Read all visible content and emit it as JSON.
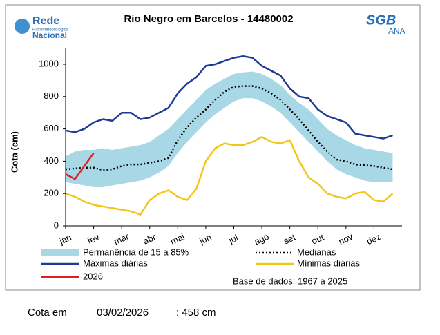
{
  "logo": {
    "line1": "Rede",
    "line2": "Hidrometeorológica",
    "line3": "Nacional",
    "right1": "SGB",
    "right2": "ANA"
  },
  "chart_data": {
    "type": "line",
    "title": "Rio Negro em Barcelos - 14480002",
    "y_label": "Cota (cm)",
    "note": "Base de dados: 1967 a 2025",
    "categories": [
      "jan",
      null,
      null,
      "fev",
      null,
      null,
      "mar",
      null,
      null,
      "abr",
      null,
      null,
      "mai",
      null,
      null,
      "jun",
      null,
      null,
      "jul",
      null,
      null,
      "ago",
      null,
      null,
      "set",
      null,
      null,
      "out",
      null,
      null,
      "nov",
      null,
      null,
      "dez",
      null,
      null
    ],
    "ylim": [
      0,
      1100
    ],
    "yticks": [
      0,
      200,
      400,
      600,
      800,
      1000
    ],
    "series": [
      {
        "name": "Permanência de 15 a 85%",
        "color": "#a8d8e6",
        "style": "band",
        "upper": [
          430,
          460,
          470,
          470,
          480,
          470,
          480,
          490,
          500,
          520,
          560,
          600,
          660,
          720,
          780,
          840,
          880,
          910,
          940,
          950,
          955,
          940,
          910,
          870,
          810,
          760,
          720,
          660,
          600,
          560,
          530,
          500,
          480,
          470,
          460,
          450
        ],
        "lower": [
          270,
          260,
          250,
          240,
          240,
          250,
          260,
          270,
          280,
          300,
          330,
          370,
          450,
          520,
          580,
          640,
          690,
          730,
          770,
          790,
          790,
          770,
          740,
          700,
          640,
          580,
          520,
          460,
          400,
          350,
          320,
          300,
          280,
          270,
          270,
          270
        ]
      },
      {
        "name": "Medianas",
        "color": "#000000",
        "style": "dotted",
        "values": [
          350,
          355,
          360,
          360,
          345,
          350,
          370,
          380,
          380,
          390,
          400,
          420,
          530,
          610,
          670,
          720,
          780,
          830,
          860,
          865,
          865,
          850,
          820,
          780,
          720,
          660,
          590,
          520,
          460,
          410,
          400,
          380,
          375,
          370,
          360,
          350
        ]
      },
      {
        "name": "Máximas diárias",
        "color": "#1f3a93",
        "style": "solid",
        "values": [
          590,
          580,
          600,
          640,
          660,
          650,
          700,
          700,
          660,
          670,
          700,
          730,
          820,
          880,
          920,
          990,
          1000,
          1020,
          1040,
          1050,
          1040,
          990,
          960,
          930,
          850,
          800,
          790,
          720,
          680,
          660,
          640,
          570,
          560,
          550,
          540,
          560
        ]
      },
      {
        "name": "Mínimas diárias",
        "color": "#f2c618",
        "style": "solid",
        "values": [
          200,
          180,
          150,
          130,
          120,
          110,
          100,
          90,
          70,
          160,
          200,
          220,
          180,
          160,
          230,
          400,
          480,
          510,
          500,
          500,
          520,
          550,
          520,
          510,
          530,
          400,
          300,
          260,
          200,
          180,
          170,
          200,
          210,
          160,
          150,
          200
        ]
      },
      {
        "name": "2026",
        "color": "#e02020",
        "style": "solid",
        "values": [
          320,
          290,
          370,
          450,
          null,
          null,
          null,
          null,
          null,
          null,
          null,
          null,
          null,
          null,
          null,
          null,
          null,
          null,
          null,
          null,
          null,
          null,
          null,
          null,
          null,
          null,
          null,
          null,
          null,
          null,
          null,
          null,
          null,
          null,
          null,
          null
        ]
      }
    ]
  },
  "footer": {
    "label": "Cota em",
    "date": "03/02/2026",
    "value": ": 458 cm"
  }
}
